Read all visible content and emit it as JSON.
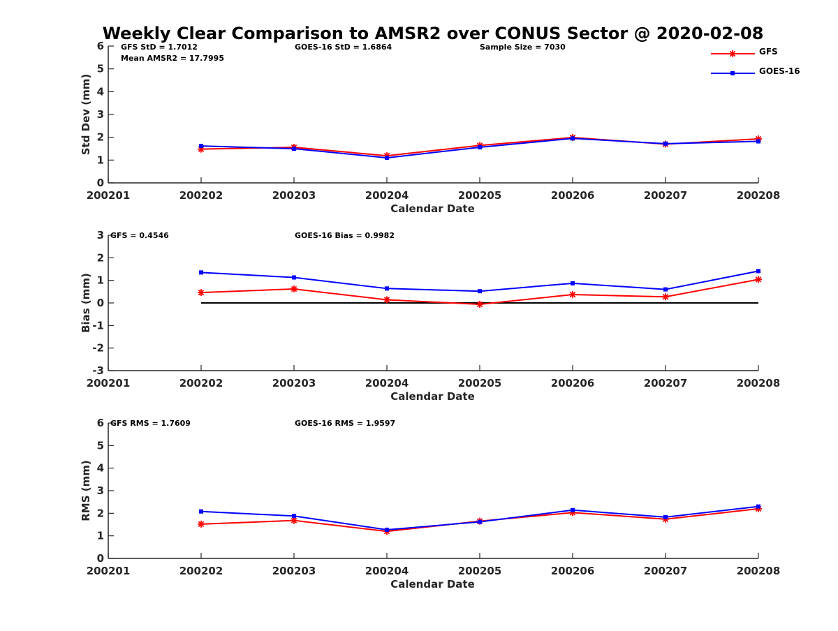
{
  "title": "Weekly Clear Comparison to AMSR2 over CONUS Sector @ 2020-02-08",
  "legend": [
    {
      "name": "GFS",
      "color": "#ff0000",
      "marker": "asterisk"
    },
    {
      "name": "GOES-16",
      "color": "#0000ff",
      "marker": "square"
    }
  ],
  "chart_data": [
    {
      "type": "line",
      "xlabel": "Calendar Date",
      "ylabel": "Std Dev (mm)",
      "xticks": [
        "200201",
        "200202",
        "200203",
        "200204",
        "200205",
        "200206",
        "200207",
        "200208"
      ],
      "ylim": [
        0,
        6
      ],
      "yticks": [
        "0",
        "1",
        "2",
        "3",
        "4",
        "5",
        "6"
      ],
      "x": [
        "200202",
        "200203",
        "200204",
        "200205",
        "200206",
        "200207",
        "200208"
      ],
      "series": [
        {
          "name": "GFS",
          "values": [
            1.48,
            1.56,
            1.19,
            1.64,
            1.99,
            1.7,
            1.93
          ]
        },
        {
          "name": "GOES-16",
          "values": [
            1.62,
            1.5,
            1.1,
            1.56,
            1.95,
            1.72,
            1.82
          ]
        }
      ],
      "annotations": [
        "GFS StD = 1.7012",
        "GOES-16 StD = 1.6864",
        "Sample Size = 7030",
        "Mean AMSR2 = 17.7995"
      ],
      "reference_line": null
    },
    {
      "type": "line",
      "xlabel": "Calendar Date",
      "ylabel": "Bias (mm)",
      "xticks": [
        "200201",
        "200202",
        "200203",
        "200204",
        "200205",
        "200206",
        "200207",
        "200208"
      ],
      "ylim": [
        -3,
        3
      ],
      "yticks": [
        "-3",
        "-2",
        "-1",
        "0",
        "1",
        "2",
        "3"
      ],
      "x": [
        "200202",
        "200203",
        "200204",
        "200205",
        "200206",
        "200207",
        "200208"
      ],
      "series": [
        {
          "name": "GFS",
          "values": [
            0.46,
            0.62,
            0.14,
            -0.06,
            0.37,
            0.27,
            1.04
          ]
        },
        {
          "name": "GOES-16",
          "values": [
            1.35,
            1.13,
            0.64,
            0.52,
            0.87,
            0.6,
            1.41
          ]
        }
      ],
      "annotations": [
        "GFS = 0.4546",
        "GOES-16 Bias  = 0.9982"
      ],
      "reference_line": {
        "y": 0,
        "from": "200202",
        "to": "200208"
      }
    },
    {
      "type": "line",
      "xlabel": "Calendar Date",
      "ylabel": "RMS (mm)",
      "xticks": [
        "200201",
        "200202",
        "200203",
        "200204",
        "200205",
        "200206",
        "200207",
        "200208"
      ],
      "ylim": [
        0,
        6
      ],
      "yticks": [
        "0",
        "1",
        "2",
        "3",
        "4",
        "5",
        "6"
      ],
      "x": [
        "200202",
        "200203",
        "200204",
        "200205",
        "200206",
        "200207",
        "200208"
      ],
      "series": [
        {
          "name": "GFS",
          "values": [
            1.52,
            1.68,
            1.2,
            1.65,
            2.03,
            1.74,
            2.2
          ]
        },
        {
          "name": "GOES-16",
          "values": [
            2.08,
            1.88,
            1.27,
            1.62,
            2.14,
            1.83,
            2.3
          ]
        }
      ],
      "annotations": [
        "GFS RMS = 1.7609",
        "GOES-16 RMS = 1.9597"
      ],
      "reference_line": null
    }
  ]
}
